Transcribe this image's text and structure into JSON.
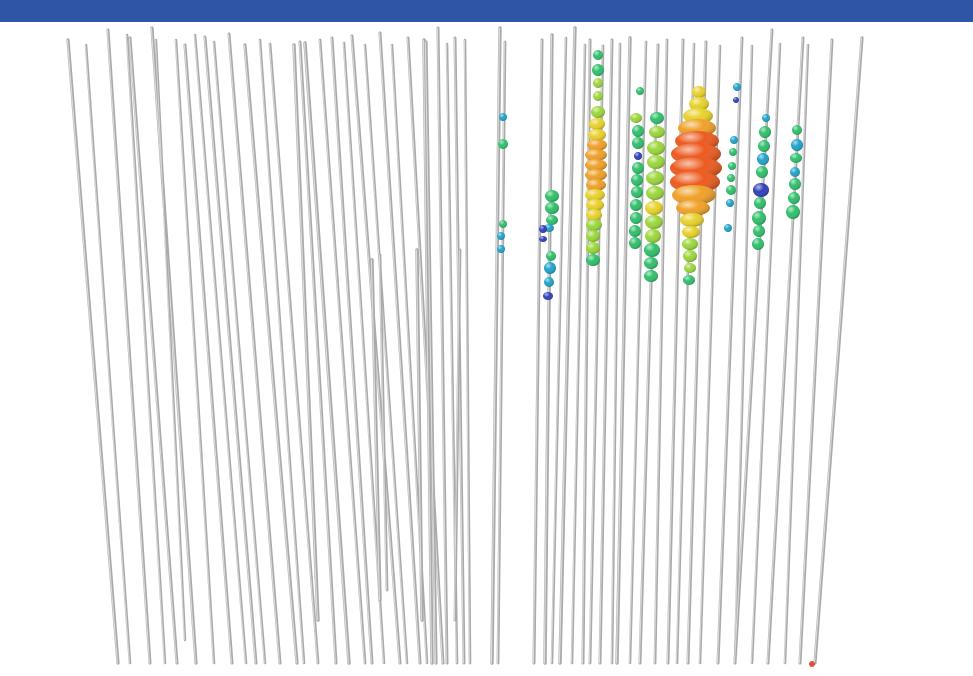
{
  "view": {
    "type": "3d-drillhole-assay-view",
    "colors": {
      "header_bar": "#2f56a6",
      "background": "#ffffff",
      "drillhole_trace": "#a9a9a9",
      "drillhole_highlight": "#dcdcdc",
      "color_scale_low_to_high": [
        "#2f3fb8",
        "#1fa3c8",
        "#2fbf6a",
        "#9ad63a",
        "#e8d12a",
        "#f0a028",
        "#ec5a1e"
      ],
      "corner_marker": "#e05040"
    },
    "drillhole_count": 64,
    "assay_sample_count": 171,
    "color_legend": "none visible"
  }
}
